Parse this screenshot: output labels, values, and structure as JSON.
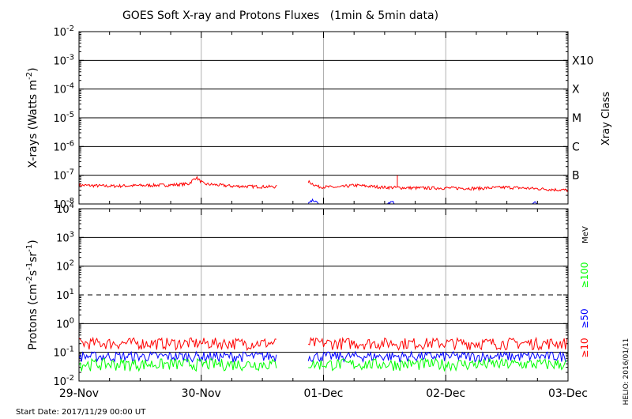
{
  "title": "GOES Soft X-ray and Protons Fluxes   (1min & 5min data)",
  "start_date": "Start Date: 2017/11/29 00:00 UT",
  "credit": "HELIO: 2016/01/11",
  "colors": {
    "xray_long": "#ff0000",
    "xray_short": "#0000ff",
    "p10": "#ff0000",
    "p50": "#0000ff",
    "p100": "#00ff00",
    "grid_v": "#b0b0b0",
    "axis": "#000000"
  },
  "chart_data": [
    {
      "type": "line",
      "panel": "xray",
      "ylabel_parts": [
        "X-rays (Watts m",
        "-2",
        ")"
      ],
      "yscale": "log",
      "ylim": [
        1e-08,
        0.01
      ],
      "ytick_labels": [
        {
          "base": "10",
          "exp": "-8"
        },
        {
          "base": "10",
          "exp": "-7"
        },
        {
          "base": "10",
          "exp": "-6"
        },
        {
          "base": "10",
          "exp": "-5"
        },
        {
          "base": "10",
          "exp": "-4"
        },
        {
          "base": "10",
          "exp": "-3"
        },
        {
          "base": "10",
          "exp": "-2"
        }
      ],
      "right_axis_title": "Xray Class",
      "right_classes": [
        "B",
        "C",
        "M",
        "X",
        "X10"
      ],
      "xlim": [
        "2017-11-29",
        "2017-12-03"
      ],
      "x_tick_labels": [
        "29-Nov",
        "30-Nov",
        "01-Dec",
        "02-Dec",
        "03-Dec"
      ],
      "gaps": [
        [
          "2017-11-30 15:00",
          "2017-11-30 21:00"
        ]
      ],
      "series": [
        {
          "key": "long",
          "color": "#ff0000",
          "points": [
            [
              "2017-11-29 00:00",
              4.5e-08
            ],
            [
              "2017-11-29 06:00",
              4.2e-08
            ],
            [
              "2017-11-29 12:00",
              4.4e-08
            ],
            [
              "2017-11-29 18:00",
              4.6e-08
            ],
            [
              "2017-11-29 21:30",
              5e-08
            ],
            [
              "2017-11-29 23:00",
              8.5e-08
            ],
            [
              "2017-11-30 00:30",
              5e-08
            ],
            [
              "2017-11-30 06:00",
              4.2e-08
            ],
            [
              "2017-11-30 12:00",
              4e-08
            ],
            [
              "2017-11-30 15:00",
              4e-08
            ],
            [
              "2017-11-30 21:00",
              6e-08
            ],
            [
              "2017-11-30 23:00",
              4e-08
            ],
            [
              "2017-12-01 03:00",
              3.8e-08
            ],
            [
              "2017-12-01 06:00",
              4.5e-08
            ],
            [
              "2017-12-01 12:00",
              3.8e-08
            ],
            [
              "2017-12-01 18:00",
              3.6e-08
            ],
            [
              "2017-12-02 00:00",
              3.6e-08
            ],
            [
              "2017-12-02 06:00",
              3.5e-08
            ],
            [
              "2017-12-02 12:00",
              3.8e-08
            ],
            [
              "2017-12-02 18:00",
              3.4e-08
            ],
            [
              "2017-12-03 00:00",
              3e-08
            ]
          ]
        },
        {
          "key": "short",
          "color": "#0000ff",
          "points": [
            [
              "2017-11-30 21:00",
              1e-08
            ],
            [
              "2017-11-30 22:00",
              1.4e-08
            ],
            [
              "2017-11-30 23:00",
              1e-08
            ],
            [
              "2017-12-01 12:30",
              1e-08
            ],
            [
              "2017-12-01 13:30",
              1.2e-08
            ],
            [
              "2017-12-01 14:00",
              1e-08
            ],
            [
              "2017-12-02 17:00",
              1e-08
            ],
            [
              "2017-12-02 17:30",
              1.15e-08
            ],
            [
              "2017-12-02 18:00",
              1e-08
            ]
          ]
        }
      ],
      "spikes": [
        {
          "x": "2017-12-01 14:30",
          "y": 1e-07
        }
      ]
    },
    {
      "type": "line",
      "panel": "protons",
      "ylabel_parts": [
        "Protons (cm",
        "-2",
        "s",
        "-1",
        "sr",
        "-1",
        ")"
      ],
      "yscale": "log",
      "ylim": [
        0.01,
        10000
      ],
      "ytick_labels": [
        {
          "base": "10",
          "exp": "-2"
        },
        {
          "base": "10",
          "exp": "-1"
        },
        {
          "base": "10",
          "exp": "0"
        },
        {
          "base": "10",
          "exp": "1"
        },
        {
          "base": "10",
          "exp": "2"
        },
        {
          "base": "10",
          "exp": "3"
        },
        {
          "base": "10",
          "exp": "4"
        }
      ],
      "threshold_line": {
        "y": 10,
        "style": "dashed"
      },
      "legend": [
        {
          "label": "≥10",
          "color": "#ff0000"
        },
        {
          "label": "≥50",
          "color": "#0000ff"
        },
        {
          "label": "≥100",
          "color": "#00ff00"
        }
      ],
      "units_label": "MeV",
      "xlim": [
        "2017-11-29",
        "2017-12-03"
      ],
      "x_tick_labels": [
        "29-Nov",
        "30-Nov",
        "01-Dec",
        "02-Dec",
        "03-Dec"
      ],
      "gaps": [
        [
          "2017-11-30 15:00",
          "2017-11-30 21:00"
        ]
      ],
      "series": [
        {
          "key": "p10",
          "color": "#ff0000",
          "band": [
            0.12,
            0.32
          ]
        },
        {
          "key": "p50",
          "color": "#0000ff",
          "band": [
            0.045,
            0.105
          ]
        },
        {
          "key": "p100",
          "color": "#00ff00",
          "band": [
            0.022,
            0.06
          ]
        }
      ]
    }
  ]
}
